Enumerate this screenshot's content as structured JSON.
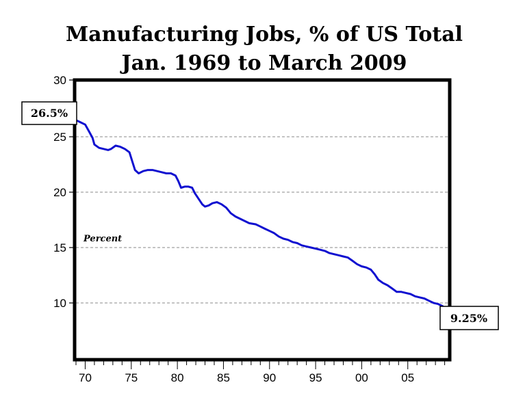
{
  "chart_data": {
    "type": "line",
    "title": "Manufacturing Jobs, % of US Total",
    "subtitle": "Jan. 1969 to March 2009",
    "ylabel": "Percent",
    "xlabel": "",
    "xlim": [
      1969,
      2009.4
    ],
    "ylim": [
      5,
      30
    ],
    "grid": true,
    "x_tick_labels": [
      "70",
      "75",
      "80",
      "85",
      "90",
      "95",
      "00",
      "05"
    ],
    "x_tick_years": [
      1970,
      1975,
      1980,
      1985,
      1990,
      1995,
      2000,
      2005
    ],
    "y_ticks": [
      10,
      15,
      20,
      25,
      30
    ],
    "y_gridlines": [
      10,
      15,
      20,
      25
    ],
    "series": [
      {
        "color": "#1010d0",
        "x": [
          1969.0,
          1969.5,
          1970.0,
          1970.4,
          1970.8,
          1971.0,
          1971.5,
          1972.0,
          1972.5,
          1972.8,
          1973.3,
          1973.8,
          1974.3,
          1974.8,
          1975.1,
          1975.4,
          1975.8,
          1976.3,
          1976.8,
          1977.3,
          1977.8,
          1978.3,
          1978.8,
          1979.3,
          1979.8,
          1980.1,
          1980.4,
          1980.8,
          1981.2,
          1981.6,
          1981.9,
          1982.3,
          1982.7,
          1983.0,
          1983.4,
          1983.8,
          1984.3,
          1984.8,
          1985.3,
          1985.8,
          1986.3,
          1986.8,
          1987.3,
          1987.8,
          1988.5,
          1989.0,
          1989.5,
          1990.0,
          1990.5,
          1991.0,
          1991.5,
          1992.0,
          1992.5,
          1993.0,
          1993.5,
          1994.0,
          1994.5,
          1995.0,
          1995.5,
          1996.0,
          1996.5,
          1997.0,
          1997.5,
          1998.0,
          1998.5,
          1999.0,
          1999.5,
          2000.0,
          2000.5,
          2001.0,
          2001.4,
          2001.8,
          2002.3,
          2002.8,
          2003.3,
          2003.8,
          2004.3,
          2004.8,
          2005.3,
          2005.8,
          2006.3,
          2006.8,
          2007.3,
          2007.8,
          2008.3,
          2008.8,
          2009.2
        ],
        "y": [
          26.5,
          26.3,
          26.1,
          25.5,
          24.9,
          24.3,
          24.0,
          23.9,
          23.8,
          23.9,
          24.2,
          24.1,
          23.9,
          23.6,
          22.8,
          22.0,
          21.7,
          21.9,
          22.0,
          22.0,
          21.9,
          21.8,
          21.7,
          21.7,
          21.5,
          21.0,
          20.4,
          20.5,
          20.5,
          20.4,
          19.9,
          19.4,
          18.9,
          18.7,
          18.8,
          19.0,
          19.1,
          18.9,
          18.6,
          18.1,
          17.8,
          17.6,
          17.4,
          17.2,
          17.1,
          16.9,
          16.7,
          16.5,
          16.3,
          16.0,
          15.8,
          15.7,
          15.5,
          15.4,
          15.2,
          15.1,
          15.0,
          14.9,
          14.8,
          14.7,
          14.5,
          14.4,
          14.3,
          14.2,
          14.1,
          13.8,
          13.5,
          13.3,
          13.2,
          13.0,
          12.6,
          12.1,
          11.8,
          11.6,
          11.3,
          11.0,
          11.0,
          10.9,
          10.8,
          10.6,
          10.5,
          10.4,
          10.2,
          10.0,
          9.9,
          9.7,
          9.25
        ]
      }
    ],
    "annotations": {
      "start_value": "26.5%",
      "end_value": "9.25%"
    }
  }
}
